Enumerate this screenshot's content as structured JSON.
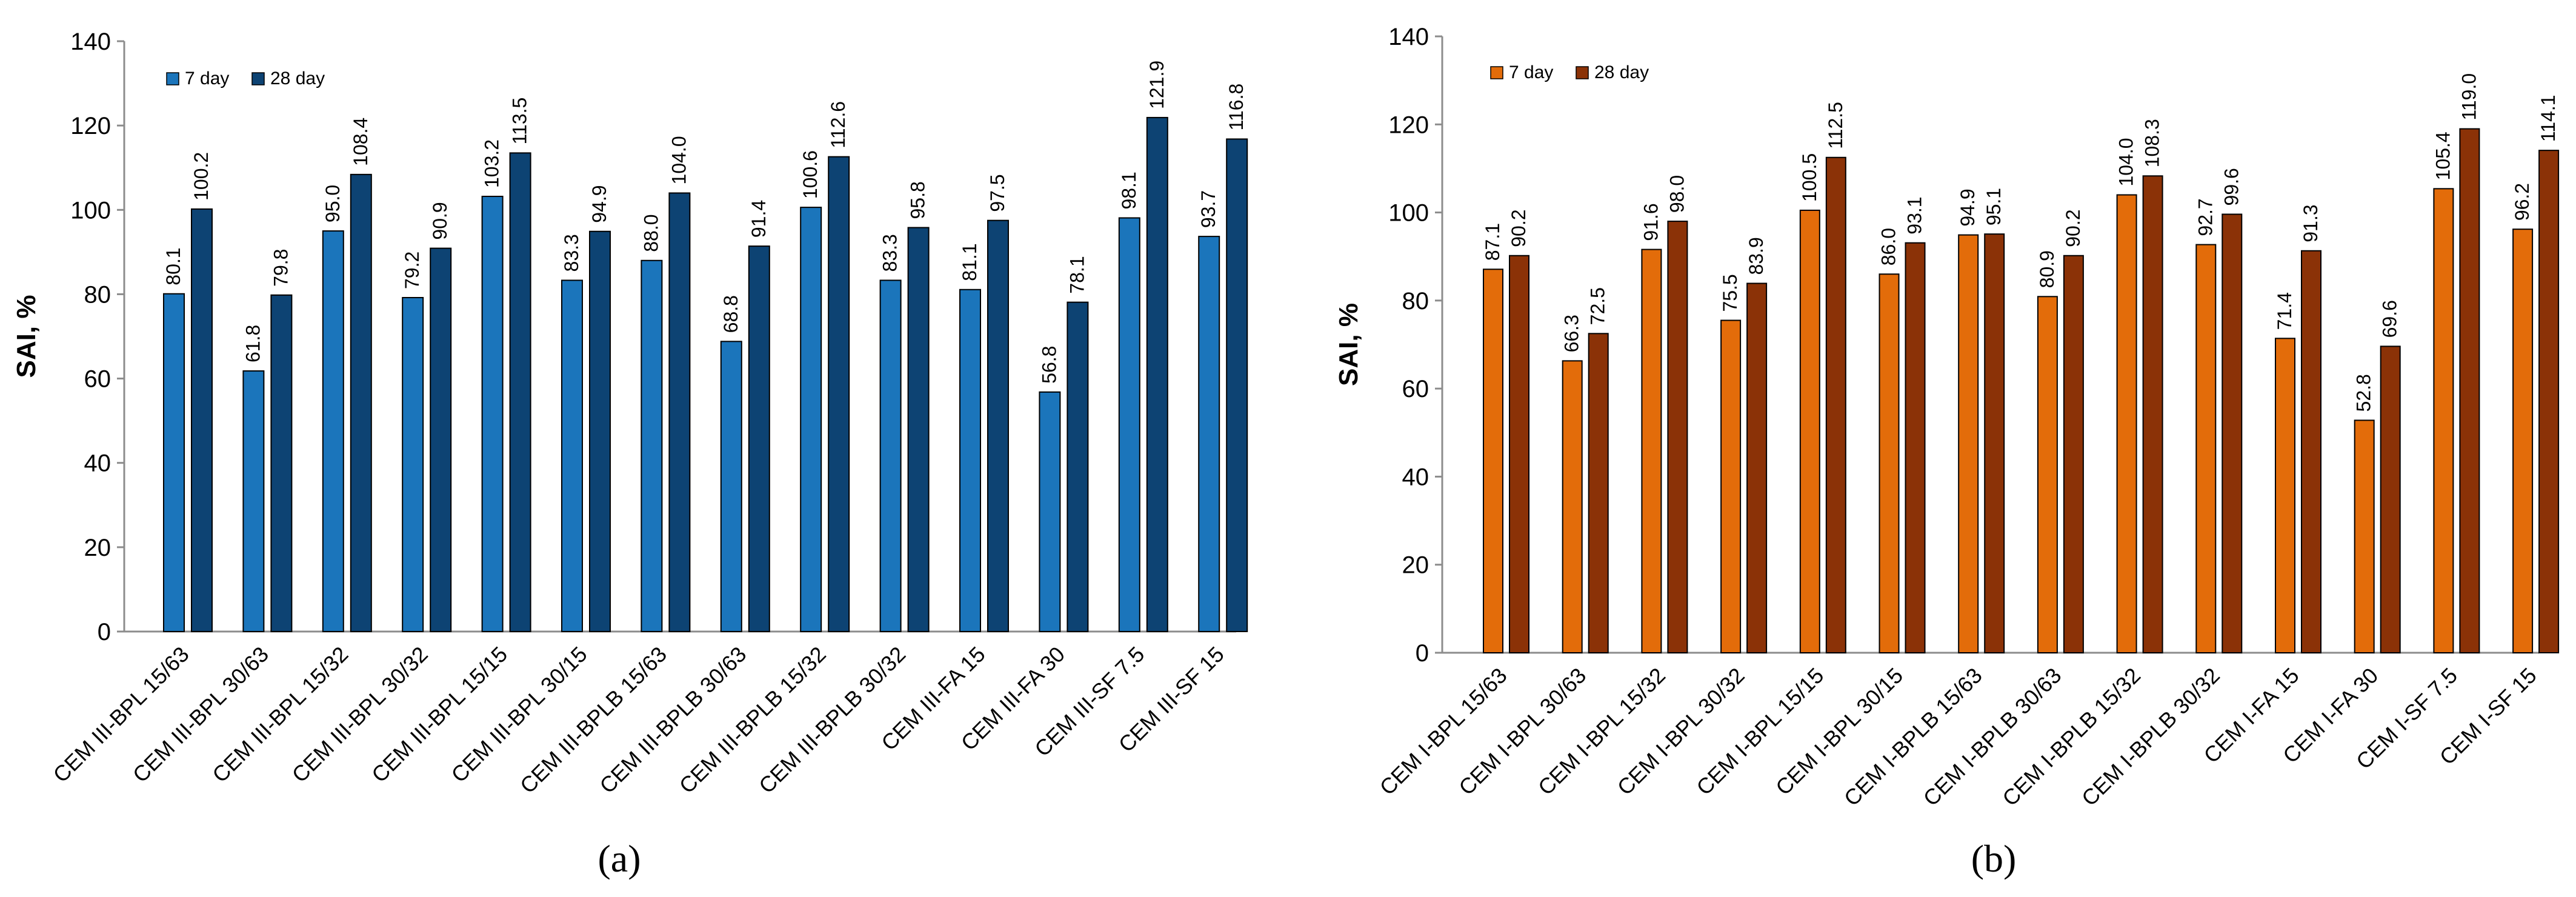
{
  "chart_data": [
    {
      "type": "bar",
      "panel_label": "(a)",
      "title": "",
      "xlabel": "",
      "ylabel": "SAI, %",
      "ylim": [
        0,
        140
      ],
      "yticks": [
        0,
        20,
        40,
        60,
        80,
        100,
        120,
        140
      ],
      "grid": false,
      "legend_position": "top-left",
      "categories": [
        "CEM III-BPL 15/63",
        "CEM III-BPL 30/63",
        "CEM III-BPL 15/32",
        "CEM III-BPL 30/32",
        "CEM III-BPL 15/15",
        "CEM III-BPL 30/15",
        "CEM III-BPLB 15/63",
        "CEM III-BPLB 30/63",
        "CEM III-BPLB 15/32",
        "CEM III-BPLB 30/32",
        "CEM III-FA 15",
        "CEM III-FA 30",
        "CEM III-SF 7.5",
        "CEM III-SF 15"
      ],
      "series": [
        {
          "name": "7 day",
          "color": "#1B75BB",
          "values": [
            80.1,
            61.8,
            95.0,
            79.2,
            103.2,
            83.3,
            88.0,
            68.8,
            100.6,
            83.3,
            81.1,
            56.8,
            98.1,
            93.7
          ],
          "labels": [
            "80.1",
            "61.8",
            "95.0",
            "79.2",
            "103.2",
            "83.3",
            "88.0",
            "68.8",
            "100.6",
            "83.3",
            "81.1",
            "56.8",
            "98.1",
            "93.7"
          ]
        },
        {
          "name": "28 day",
          "color": "#0D4373",
          "values": [
            100.2,
            79.8,
            108.4,
            90.9,
            113.5,
            94.9,
            104.0,
            91.4,
            112.6,
            95.8,
            97.5,
            78.1,
            121.9,
            116.8
          ],
          "labels": [
            "100.2",
            "79.8",
            "108.4",
            "90.9",
            "113.5",
            "94.9",
            "104.0",
            "91.4",
            "112.6",
            "95.8",
            "97.5",
            "78.1",
            "121.9",
            "116.8"
          ]
        }
      ]
    },
    {
      "type": "bar",
      "panel_label": "(b)",
      "title": "",
      "xlabel": "",
      "ylabel": "SAI, %",
      "ylim": [
        0,
        140
      ],
      "yticks": [
        0,
        20,
        40,
        60,
        80,
        100,
        120,
        140
      ],
      "grid": false,
      "legend_position": "top-left",
      "categories": [
        "CEM I-BPL 15/63",
        "CEM I-BPL 30/63",
        "CEM I-BPL 15/32",
        "CEM I-BPL 30/32",
        "CEM I-BPL 15/15",
        "CEM I-BPL 30/15",
        "CEM I-BPLB 15/63",
        "CEM I-BPLB 30/63",
        "CEM I-BPLB 15/32",
        "CEM I-BPLB 30/32",
        "CEM I-FA 15",
        "CEM I-FA 30",
        "CEM I-SF 7.5",
        "CEM I-SF 15"
      ],
      "series": [
        {
          "name": "7 day",
          "color": "#E36C0A",
          "values": [
            87.1,
            66.3,
            91.6,
            75.5,
            100.5,
            86.0,
            94.9,
            80.9,
            104.0,
            92.7,
            71.4,
            52.8,
            105.4,
            96.2
          ],
          "labels": [
            "87.1",
            "66.3",
            "91.6",
            "75.5",
            "100.5",
            "86.0",
            "94.9",
            "80.9",
            "104.0",
            "92.7",
            "71.4",
            "52.8",
            "105.4",
            "96.2"
          ]
        },
        {
          "name": "28 day",
          "color": "#8B3207",
          "values": [
            90.2,
            72.5,
            98.0,
            83.9,
            112.5,
            93.1,
            95.1,
            90.2,
            108.3,
            99.6,
            91.3,
            69.6,
            119.0,
            114.1
          ],
          "labels": [
            "90.2",
            "72.5",
            "98.0",
            "83.9",
            "112.5",
            "93.1",
            "95.1",
            "90.2",
            "108.3",
            "99.6",
            "91.3",
            "69.6",
            "119.0",
            "114.1"
          ]
        }
      ]
    }
  ]
}
